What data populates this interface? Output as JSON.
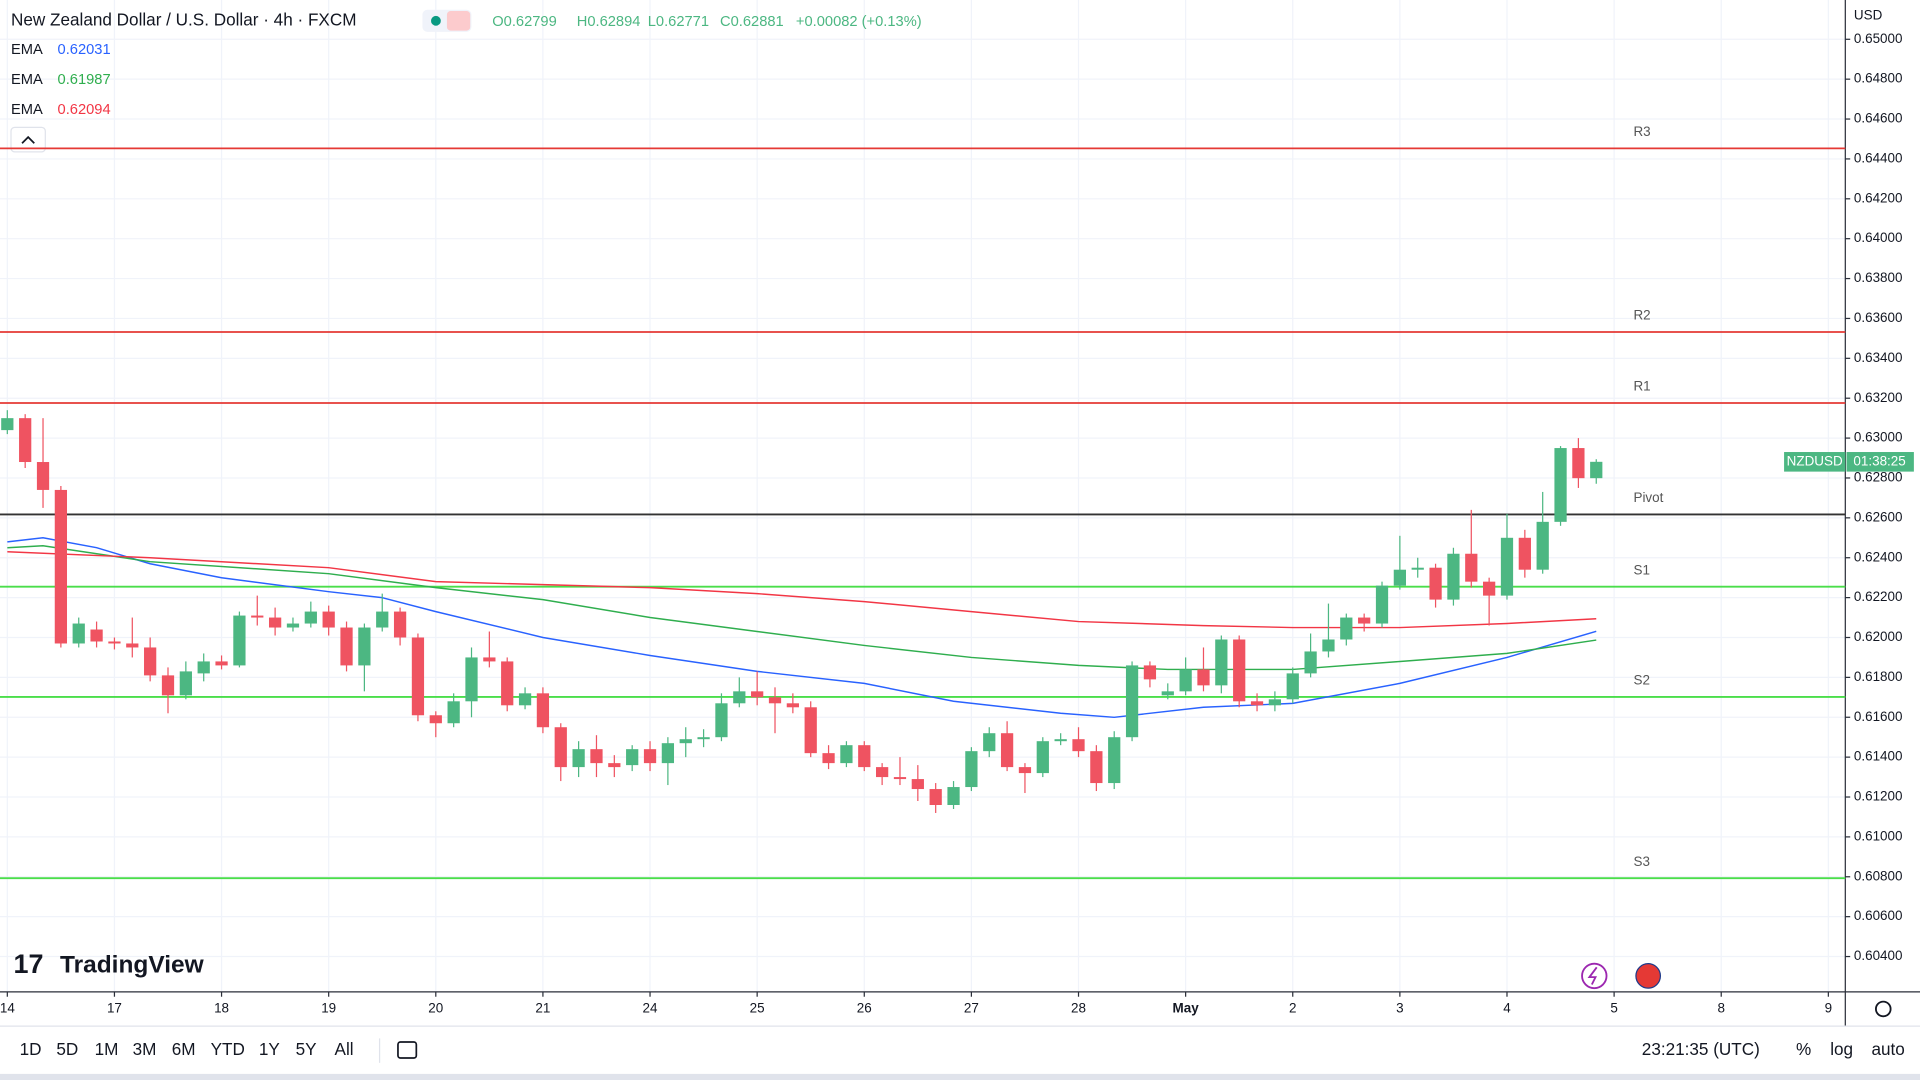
{
  "chart_data": {
    "type": "candlestick",
    "title": "New Zealand Dollar / U.S. Dollar · 4h · FXCM",
    "ohlc_labels": [
      "O0.62799",
      "H0.62894",
      "L0.62771",
      "C0.62881",
      "+0.00082 (+0.13%)"
    ],
    "currency": "USD",
    "symbol": "NZDUSD",
    "countdown": "01:38:25",
    "up_color": "#4cb782",
    "down_color": "#ef5361",
    "open": [
      0.6304,
      0.631,
      0.6288,
      0.6274,
      0.6197,
      0.6204,
      0.6198,
      0.6197,
      0.6195,
      0.6181,
      0.6171,
      0.6182,
      0.6188,
      0.6186,
      0.6211,
      0.621,
      0.6205,
      0.6207,
      0.6213,
      0.6205,
      0.6186,
      0.6205,
      0.6213,
      0.62,
      0.6161,
      0.6157,
      0.6168,
      0.619,
      0.6188,
      0.6166,
      0.6172,
      0.6155,
      0.6135,
      0.6144,
      0.6137,
      0.6136,
      0.6144,
      0.6137,
      0.6147,
      0.6149,
      0.615,
      0.6167,
      0.6173,
      0.617,
      0.6167,
      0.6165,
      0.6142,
      0.6137,
      0.6146,
      0.6135,
      0.613,
      0.6129,
      0.6124,
      0.6116,
      0.6125,
      0.6143,
      0.6152,
      0.6135,
      0.6132,
      0.6148,
      0.6149,
      0.6143,
      0.6127,
      0.615,
      0.6186,
      0.6171,
      0.6173,
      0.6184,
      0.6176,
      0.6199,
      0.6168,
      0.6166,
      0.6169,
      0.6182,
      0.6193,
      0.6199,
      0.621,
      0.6207,
      0.6226,
      0.6234,
      0.6235,
      0.6219,
      0.6242,
      0.6228,
      0.6221,
      0.625,
      0.6234,
      0.6258,
      0.6295,
      0.62799
    ],
    "high": [
      0.6314,
      0.6312,
      0.631,
      0.6276,
      0.621,
      0.6208,
      0.62,
      0.621,
      0.62,
      0.6185,
      0.6188,
      0.6192,
      0.6191,
      0.6213,
      0.6221,
      0.6215,
      0.621,
      0.6218,
      0.6216,
      0.6208,
      0.6207,
      0.6222,
      0.6215,
      0.6202,
      0.6163,
      0.6172,
      0.6195,
      0.6203,
      0.619,
      0.6175,
      0.6175,
      0.6157,
      0.6148,
      0.6151,
      0.6141,
      0.6146,
      0.6148,
      0.615,
      0.6155,
      0.6154,
      0.6172,
      0.618,
      0.6183,
      0.6175,
      0.6172,
      0.6168,
      0.6146,
      0.6148,
      0.6148,
      0.6137,
      0.614,
      0.6136,
      0.6127,
      0.6128,
      0.6145,
      0.6155,
      0.6158,
      0.6137,
      0.615,
      0.6152,
      0.6155,
      0.6146,
      0.6153,
      0.6188,
      0.6188,
      0.6177,
      0.619,
      0.6195,
      0.6201,
      0.6201,
      0.6172,
      0.6173,
      0.6185,
      0.6202,
      0.6217,
      0.6212,
      0.6212,
      0.6228,
      0.6251,
      0.624,
      0.6237,
      0.6245,
      0.6264,
      0.623,
      0.6262,
      0.6254,
      0.6273,
      0.6296,
      0.63,
      0.62894
    ],
    "low": [
      0.6302,
      0.6285,
      0.6265,
      0.6195,
      0.6195,
      0.6195,
      0.6194,
      0.619,
      0.6178,
      0.6162,
      0.6169,
      0.6178,
      0.6184,
      0.6185,
      0.6206,
      0.6201,
      0.6203,
      0.6205,
      0.6201,
      0.6183,
      0.6173,
      0.6203,
      0.6196,
      0.6158,
      0.615,
      0.6155,
      0.616,
      0.6185,
      0.6163,
      0.6164,
      0.6152,
      0.6128,
      0.613,
      0.613,
      0.613,
      0.6133,
      0.6133,
      0.6126,
      0.614,
      0.6145,
      0.6148,
      0.6165,
      0.6166,
      0.6152,
      0.6162,
      0.614,
      0.6134,
      0.6135,
      0.6133,
      0.6126,
      0.6126,
      0.6118,
      0.6112,
      0.6114,
      0.6123,
      0.614,
      0.6133,
      0.6122,
      0.613,
      0.6146,
      0.614,
      0.6123,
      0.6124,
      0.6148,
      0.6175,
      0.6169,
      0.6171,
      0.6173,
      0.6172,
      0.6165,
      0.6163,
      0.6163,
      0.6167,
      0.618,
      0.619,
      0.6196,
      0.6203,
      0.6205,
      0.6224,
      0.623,
      0.6215,
      0.6216,
      0.6225,
      0.6206,
      0.6219,
      0.623,
      0.6232,
      0.6256,
      0.6275,
      0.62771
    ],
    "close": [
      0.631,
      0.6288,
      0.6274,
      0.6197,
      0.6207,
      0.6198,
      0.6197,
      0.6195,
      0.6181,
      0.6171,
      0.6183,
      0.6188,
      0.6186,
      0.6211,
      0.621,
      0.6205,
      0.6207,
      0.6213,
      0.6205,
      0.6186,
      0.6205,
      0.6213,
      0.62,
      0.6161,
      0.6157,
      0.6168,
      0.619,
      0.6188,
      0.6166,
      0.6172,
      0.6155,
      0.6135,
      0.6144,
      0.6137,
      0.6135,
      0.6144,
      0.6137,
      0.6147,
      0.6149,
      0.615,
      0.6167,
      0.6173,
      0.617,
      0.6167,
      0.6165,
      0.6142,
      0.6137,
      0.6146,
      0.6135,
      0.613,
      0.6129,
      0.6124,
      0.6116,
      0.6125,
      0.6143,
      0.6152,
      0.6135,
      0.6132,
      0.6148,
      0.6149,
      0.6143,
      0.6127,
      0.615,
      0.6186,
      0.6179,
      0.6173,
      0.6184,
      0.6176,
      0.6199,
      0.6168,
      0.6166,
      0.6169,
      0.6182,
      0.6193,
      0.6199,
      0.621,
      0.6207,
      0.6226,
      0.6234,
      0.6235,
      0.6219,
      0.6242,
      0.6228,
      0.6221,
      0.625,
      0.6234,
      0.6258,
      0.6295,
      0.62799,
      0.62881
    ],
    "series": [
      {
        "name": "EMA",
        "color": "#2962ff",
        "value_label": "0.62031",
        "x": [
          0,
          2,
          5,
          8,
          12,
          18,
          21,
          24,
          30,
          36,
          42,
          48,
          53,
          59,
          62,
          67,
          72,
          78,
          84,
          89
        ],
        "values": [
          0.6248,
          0.625,
          0.6245,
          0.6237,
          0.623,
          0.6223,
          0.622,
          0.6213,
          0.62,
          0.6191,
          0.6183,
          0.6177,
          0.6168,
          0.6162,
          0.616,
          0.6165,
          0.6167,
          0.6177,
          0.619,
          0.62031
        ]
      },
      {
        "name": "EMA",
        "color": "#2fae4e",
        "value_label": "0.61987",
        "x": [
          0,
          2,
          8,
          18,
          24,
          30,
          36,
          42,
          48,
          54,
          60,
          65,
          72,
          78,
          84,
          89
        ],
        "values": [
          0.6245,
          0.6246,
          0.6238,
          0.6232,
          0.6225,
          0.6219,
          0.621,
          0.6203,
          0.6196,
          0.619,
          0.6186,
          0.6184,
          0.6184,
          0.6188,
          0.6192,
          0.61987
        ]
      },
      {
        "name": "EMA",
        "color": "#f23645",
        "value_label": "0.62094",
        "x": [
          0,
          8,
          18,
          24,
          36,
          42,
          48,
          54,
          60,
          67,
          72,
          78,
          84,
          89
        ],
        "values": [
          0.6243,
          0.624,
          0.6235,
          0.6228,
          0.6225,
          0.6222,
          0.6218,
          0.6213,
          0.6208,
          0.6206,
          0.6205,
          0.6205,
          0.6207,
          0.62094
        ]
      }
    ],
    "levels": [
      {
        "name": "R3",
        "value": 0.64453,
        "color": "#e53935"
      },
      {
        "name": "R2",
        "value": 0.63532,
        "color": "#e53935"
      },
      {
        "name": "R1",
        "value": 0.63176,
        "color": "#e53935"
      },
      {
        "name": "Pivot",
        "value": 0.62617,
        "color": "#333333"
      },
      {
        "name": "S1",
        "value": 0.62255,
        "color": "#4ade4a"
      },
      {
        "name": "S2",
        "value": 0.61702,
        "color": "#4ade4a"
      },
      {
        "name": "S3",
        "value": 0.60793,
        "color": "#4ade4a"
      }
    ],
    "xlim": [
      -0.41,
      102.95
    ],
    "xticks": [
      {
        "value": 0,
        "label": "14"
      },
      {
        "value": 6,
        "label": "17"
      },
      {
        "value": 12,
        "label": "18"
      },
      {
        "value": 18,
        "label": "19"
      },
      {
        "value": 24,
        "label": "20"
      },
      {
        "value": 30,
        "label": "21"
      },
      {
        "value": 36,
        "label": "24"
      },
      {
        "value": 42,
        "label": "25"
      },
      {
        "value": 48,
        "label": "26"
      },
      {
        "value": 54,
        "label": "27"
      },
      {
        "value": 60,
        "label": "28"
      },
      {
        "value": 66,
        "label": "May"
      },
      {
        "value": 72,
        "label": "2"
      },
      {
        "value": 78,
        "label": "3"
      },
      {
        "value": 84,
        "label": "4"
      },
      {
        "value": 90,
        "label": "5"
      },
      {
        "value": 96,
        "label": "8"
      },
      {
        "value": 102,
        "label": "9"
      }
    ],
    "ylim": [
      0.60223,
      0.65197
    ],
    "yticks": [
      {
        "value": 0.65,
        "label": "0.65000"
      },
      {
        "value": 0.648,
        "label": "0.64800"
      },
      {
        "value": 0.646,
        "label": "0.64600"
      },
      {
        "value": 0.644,
        "label": "0.64400"
      },
      {
        "value": 0.642,
        "label": "0.64200"
      },
      {
        "value": 0.64,
        "label": "0.64000"
      },
      {
        "value": 0.638,
        "label": "0.63800"
      },
      {
        "value": 0.636,
        "label": "0.63600"
      },
      {
        "value": 0.634,
        "label": "0.63400"
      },
      {
        "value": 0.632,
        "label": "0.63200"
      },
      {
        "value": 0.63,
        "label": "0.63000"
      },
      {
        "value": 0.628,
        "label": "0.62800"
      },
      {
        "value": 0.626,
        "label": "0.62600"
      },
      {
        "value": 0.624,
        "label": "0.62400"
      },
      {
        "value": 0.622,
        "label": "0.62200"
      },
      {
        "value": 0.62,
        "label": "0.62000"
      },
      {
        "value": 0.618,
        "label": "0.61800"
      },
      {
        "value": 0.616,
        "label": "0.61600"
      },
      {
        "value": 0.614,
        "label": "0.61400"
      },
      {
        "value": 0.612,
        "label": "0.61200"
      },
      {
        "value": 0.61,
        "label": "0.61000"
      },
      {
        "value": 0.608,
        "label": "0.60800"
      },
      {
        "value": 0.606,
        "label": "0.60600"
      },
      {
        "value": 0.604,
        "label": "0.60400"
      }
    ],
    "grid": true
  },
  "ui": {
    "logo": "TradingView",
    "timeframes": [
      "1D",
      "5D",
      "1M",
      "3M",
      "6M",
      "YTD",
      "1Y",
      "5Y",
      "All"
    ],
    "clock": "23:21:35 (UTC)",
    "scale_options": [
      "%",
      "log",
      "auto"
    ]
  }
}
